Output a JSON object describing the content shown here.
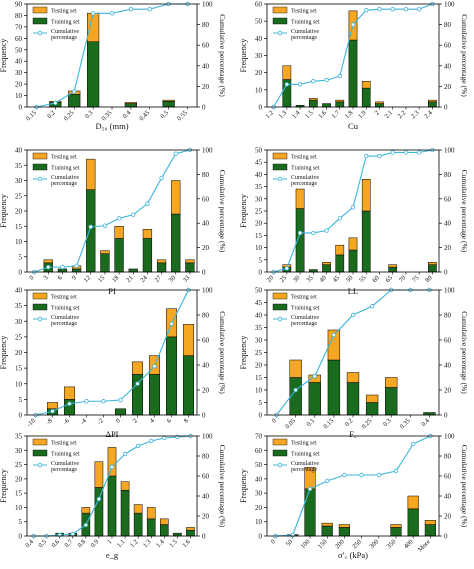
{
  "legend": {
    "testing": "Testing set",
    "training": "Training set",
    "cumulative": [
      "Cumulative",
      "percentage"
    ]
  },
  "colors": {
    "testing": "#F5A623",
    "training": "#1B6B1F",
    "cumulative": "#3CB4DA",
    "cumulative_marker_fill": "#ffffff"
  },
  "chart_data": [
    {
      "id": "d50",
      "type": "bar",
      "xlabel": "D₅₀ (mm)",
      "ylabel": "Frequency",
      "y2label": "Cumulative percentage (%)",
      "ylim": [
        0,
        90
      ],
      "yticks": [
        0,
        10,
        20,
        30,
        40,
        50,
        60,
        70,
        80,
        90
      ],
      "y2lim": [
        0,
        100
      ],
      "y2ticks": [
        0,
        20,
        40,
        60,
        80,
        100
      ],
      "legend_pos": "top-left",
      "categories": [
        "0.15",
        "0.2",
        "0.25",
        "0.3",
        "0.35",
        "0.4",
        "0.45",
        "0.5",
        "0.55"
      ],
      "training": [
        0,
        4,
        11,
        57,
        0,
        3,
        0,
        5,
        0
      ],
      "testing": [
        0,
        1,
        3,
        25,
        0,
        1,
        0,
        1,
        0
      ],
      "cumulative": [
        0,
        4,
        15,
        91,
        91,
        95,
        95,
        100,
        100
      ]
    },
    {
      "id": "cu",
      "type": "bar",
      "xlabel": "Cu",
      "ylabel": "Frequency",
      "y2label": "Cumulative percentage (%)",
      "ylim": [
        0,
        60
      ],
      "yticks": [
        0,
        10,
        20,
        30,
        40,
        50,
        60
      ],
      "y2lim": [
        0,
        100
      ],
      "y2ticks": [
        0,
        20,
        40,
        60,
        80,
        100
      ],
      "legend_pos": "top-left",
      "categories": [
        "1.2",
        "1.3",
        "1.4",
        "1.5",
        "1.6",
        "1.7",
        "1.8",
        "1.9",
        "2",
        "2.1",
        "2.2",
        "2.3",
        "2.4"
      ],
      "training": [
        0,
        16,
        1,
        4,
        2,
        3,
        39,
        11,
        2,
        0,
        0,
        0,
        3
      ],
      "testing": [
        0,
        8,
        0,
        1,
        0,
        1,
        17,
        4,
        1,
        0,
        0,
        0,
        1
      ],
      "cumulative": [
        0,
        22,
        22,
        25,
        26,
        30,
        80,
        94,
        95,
        95,
        95,
        95,
        100
      ]
    },
    {
      "id": "pi",
      "type": "bar",
      "xlabel": "PI",
      "ylabel": "Frequency",
      "y2label": "Cumulative percentage (%)",
      "ylim": [
        0,
        40
      ],
      "yticks": [
        0,
        5,
        10,
        15,
        20,
        25,
        30,
        35,
        40
      ],
      "y2lim": [
        0,
        100
      ],
      "y2ticks": [
        0,
        20,
        40,
        60,
        80,
        100
      ],
      "legend_pos": "top-left",
      "categories": [
        "0",
        "3",
        "6",
        "9",
        "12",
        "15",
        "18",
        "21",
        "24",
        "27",
        "30",
        "33"
      ],
      "training": [
        0,
        3,
        1,
        1,
        27,
        6,
        11,
        1,
        11,
        3,
        19,
        3
      ],
      "testing": [
        0,
        1,
        0,
        1,
        10,
        1,
        4,
        0,
        3,
        1,
        11,
        1
      ],
      "cumulative": [
        0,
        4,
        4,
        5,
        37,
        38,
        44,
        47,
        56,
        77,
        97,
        100
      ]
    },
    {
      "id": "ll",
      "type": "bar",
      "xlabel": "LL",
      "ylabel": "Frequency",
      "y2label": "Cumulative percentage (%)",
      "ylim": [
        0,
        50
      ],
      "yticks": [
        0,
        5,
        10,
        15,
        20,
        25,
        30,
        35,
        40,
        45,
        50
      ],
      "y2lim": [
        0,
        100
      ],
      "y2ticks": [
        0,
        20,
        40,
        60,
        80,
        100
      ],
      "legend_pos": "top-left",
      "categories": [
        "20",
        "25",
        "30",
        "35",
        "40",
        "45",
        "50",
        "55",
        "60",
        "65",
        "70",
        "75",
        "80"
      ],
      "training": [
        0,
        2,
        26,
        1,
        3,
        7,
        9,
        25,
        0,
        2,
        0,
        0,
        3
      ],
      "testing": [
        0,
        1,
        8,
        0,
        1,
        4,
        5,
        13,
        0,
        1,
        0,
        0,
        1
      ],
      "cumulative": [
        0,
        3,
        32,
        32,
        34,
        44,
        53,
        95,
        95,
        98,
        98,
        98,
        100
      ]
    },
    {
      "id": "dpi",
      "type": "bar",
      "xlabel": "ΔPI",
      "ylabel": "Frequency",
      "y2label": "Cumulative percentage (%)",
      "ylim": [
        0,
        40
      ],
      "yticks": [
        0,
        5,
        10,
        15,
        20,
        25,
        30,
        35,
        40
      ],
      "y2lim": [
        0,
        100
      ],
      "y2ticks": [
        0,
        20,
        40,
        60,
        80,
        100
      ],
      "legend_pos": "top-left",
      "categories": [
        "-10",
        "-8",
        "-6",
        "-4",
        "-2",
        "0",
        "2",
        "4",
        "6",
        "8"
      ],
      "training": [
        0,
        2,
        5,
        0,
        0,
        2,
        13,
        13,
        25,
        19
      ],
      "testing": [
        0,
        2,
        4,
        0,
        0,
        0,
        4,
        6,
        9,
        10
      ],
      "cumulative": [
        0,
        3,
        9,
        11,
        11,
        12,
        25,
        39,
        73,
        100
      ]
    },
    {
      "id": "fc",
      "type": "bar",
      "xlabel": "F꜀",
      "ylabel": "Frequency",
      "y2label": "Cumulative percentage (%)",
      "ylim": [
        0,
        50
      ],
      "yticks": [
        0,
        5,
        10,
        15,
        20,
        25,
        30,
        35,
        40,
        45,
        50
      ],
      "y2lim": [
        0,
        100
      ],
      "y2ticks": [
        0,
        20,
        40,
        60,
        80,
        100
      ],
      "legend_pos": "top-left",
      "categories": [
        "0",
        "0.05",
        "0.1",
        "0.15",
        "0.2",
        "0.25",
        "0.3",
        "0.35",
        "0.4"
      ],
      "training": [
        0,
        15,
        13,
        22,
        13,
        5,
        11,
        0,
        1
      ],
      "testing": [
        0,
        7,
        3,
        12,
        4,
        3,
        4,
        0,
        0
      ],
      "cumulative": [
        0,
        20,
        31,
        64,
        80,
        87,
        100,
        100,
        100
      ]
    },
    {
      "id": "eg",
      "type": "bar",
      "xlabel": "e_g",
      "ylabel": "Frequency",
      "y2label": "Cumulative percentage (%)",
      "ylim": [
        0,
        35
      ],
      "yticks": [
        0,
        5,
        10,
        15,
        20,
        25,
        30,
        35
      ],
      "y2lim": [
        0,
        100
      ],
      "y2ticks": [
        0,
        20,
        40,
        60,
        80,
        100
      ],
      "legend_pos": "top-left",
      "categories": [
        "0.4",
        "0.5",
        "0.6",
        "0.7",
        "0.8",
        "0.9",
        "1",
        "1.1",
        "1.2",
        "1.3",
        "1.4",
        "1.5",
        "1.6"
      ],
      "training": [
        0,
        0,
        1,
        1,
        8,
        17,
        21,
        16,
        8,
        6,
        4,
        1,
        2
      ],
      "testing": [
        0,
        0,
        0,
        0,
        2,
        9,
        10,
        3,
        3,
        4,
        2,
        0,
        1
      ],
      "cumulative": [
        0,
        0,
        1,
        2,
        11,
        37,
        69,
        82,
        90,
        95,
        98,
        99,
        100
      ]
    },
    {
      "id": "sigma",
      "type": "bar",
      "xlabel": "σ′꜀ (kPa)",
      "ylabel": "Frequency",
      "y2label": "Cumulative percentage (%)",
      "ylim": [
        0,
        70
      ],
      "yticks": [
        0,
        10,
        20,
        30,
        40,
        50,
        60,
        70
      ],
      "y2lim": [
        0,
        100
      ],
      "y2ticks": [
        0,
        20,
        40,
        60,
        80,
        100
      ],
      "legend_pos": "top-left",
      "categories": [
        "0",
        "50",
        "100",
        "150",
        "200",
        "250",
        "300",
        "350",
        "400",
        "More"
      ],
      "training": [
        0,
        1,
        33,
        7,
        6,
        0,
        0,
        6,
        19,
        8
      ],
      "testing": [
        0,
        0,
        15,
        2,
        2,
        0,
        0,
        2,
        9,
        3
      ],
      "cumulative": [
        0,
        1,
        47,
        55,
        61,
        61,
        61,
        65,
        92,
        100
      ]
    }
  ]
}
